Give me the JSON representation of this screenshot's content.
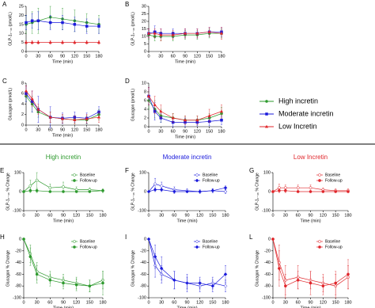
{
  "legend": [
    "High incretin",
    "Moderate incretin",
    "Low Incretin"
  ],
  "chart_data": [
    {
      "type": "line",
      "label": "A",
      "ylabel": "GLP-1₇₋₃₆ (pmol/L)",
      "xlabel": "Time (min)",
      "x": [
        0,
        15,
        30,
        60,
        90,
        120,
        150,
        180
      ],
      "xlim": [
        0,
        180
      ],
      "xticks": [
        0,
        30,
        60,
        90,
        120,
        150,
        180
      ],
      "ylim": [
        0,
        25
      ],
      "yticks": [
        0,
        5,
        10,
        15,
        20,
        25
      ],
      "series": [
        {
          "name": "High incretin",
          "color": "#2e9a2e",
          "marker": "circle",
          "values": [
            15,
            16,
            17,
            19,
            18,
            17,
            16,
            15
          ],
          "errors": [
            5,
            6,
            7,
            6,
            6,
            6,
            5,
            5
          ]
        },
        {
          "name": "Moderate incretin",
          "color": "#1a1adb",
          "marker": "square",
          "values": [
            16,
            17,
            17,
            16,
            16,
            15,
            14,
            14
          ],
          "errors": [
            4,
            4,
            5,
            4,
            4,
            4,
            4,
            4
          ]
        },
        {
          "name": "Low Incretin",
          "color": "#e0262b",
          "marker": "triangle",
          "values": [
            5,
            5,
            5,
            5,
            5,
            5,
            5,
            5
          ],
          "errors": [
            1,
            1,
            1,
            1,
            1,
            1,
            1,
            1
          ]
        }
      ]
    },
    {
      "type": "line",
      "label": "B",
      "ylabel": "GLP-1₇₋₃₆ (pmol/L)",
      "xlabel": "Time (min)",
      "x": [
        0,
        15,
        30,
        60,
        90,
        120,
        150,
        180
      ],
      "xlim": [
        0,
        180
      ],
      "xticks": [
        0,
        30,
        60,
        90,
        120,
        150,
        180
      ],
      "ylim": [
        0,
        30
      ],
      "yticks": [
        0,
        5,
        10,
        15,
        20,
        25,
        30
      ],
      "series": [
        {
          "color": "#2e9a2e",
          "marker": "circle",
          "values": [
            11,
            10,
            10,
            10,
            11,
            11,
            12,
            12
          ],
          "errors": [
            3,
            3,
            3,
            3,
            3,
            3,
            3,
            3
          ]
        },
        {
          "color": "#1a1adb",
          "marker": "square",
          "values": [
            12,
            13,
            12,
            12,
            12,
            12,
            13,
            13
          ],
          "errors": [
            3,
            4,
            3,
            3,
            3,
            3,
            3,
            3
          ]
        },
        {
          "color": "#e0262b",
          "marker": "triangle",
          "values": [
            12,
            12,
            11,
            11,
            12,
            12,
            13,
            12
          ],
          "errors": [
            3,
            3,
            4,
            3,
            3,
            3,
            3,
            4
          ]
        }
      ]
    },
    {
      "type": "line",
      "label": "C",
      "ylabel": "Glucagon (pmol/L)",
      "xlabel": "Time (min)",
      "x": [
        0,
        15,
        30,
        60,
        90,
        120,
        150,
        180
      ],
      "xlim": [
        0,
        180
      ],
      "xticks": [
        0,
        30,
        60,
        90,
        120,
        150,
        180
      ],
      "ylim": [
        0,
        8
      ],
      "yticks": [
        0,
        2,
        4,
        6,
        8
      ],
      "series": [
        {
          "color": "#2e9a2e",
          "marker": "circle",
          "values": [
            5.5,
            4,
            2.5,
            1.5,
            1.2,
            1,
            1,
            2
          ],
          "errors": [
            1,
            1.5,
            1,
            1,
            0.8,
            0.8,
            0.8,
            1
          ]
        },
        {
          "color": "#1a1adb",
          "marker": "square",
          "values": [
            6,
            4.5,
            3,
            1.5,
            1.3,
            1.5,
            1.3,
            2.5
          ],
          "errors": [
            1.5,
            2,
            2.5,
            2,
            1,
            1,
            1,
            1
          ]
        },
        {
          "color": "#e0262b",
          "marker": "triangle",
          "values": [
            6.5,
            5,
            3,
            1.5,
            1.2,
            1,
            1.2,
            1.5
          ],
          "errors": [
            1,
            1.5,
            1,
            1,
            0.8,
            0.8,
            0.8,
            1
          ]
        }
      ]
    },
    {
      "type": "line",
      "label": "D",
      "ylabel": "Glucagon (pmol/L)",
      "xlabel": "Time (min)",
      "x": [
        0,
        15,
        30,
        60,
        90,
        120,
        150,
        180
      ],
      "xlim": [
        0,
        180
      ],
      "xticks": [
        0,
        30,
        60,
        90,
        120,
        150,
        180
      ],
      "ylim": [
        0,
        10
      ],
      "yticks": [
        0,
        2,
        4,
        6,
        8,
        10
      ],
      "series": [
        {
          "color": "#2e9a2e",
          "marker": "circle",
          "values": [
            6,
            4,
            2.5,
            2,
            1.5,
            1.5,
            2,
            3
          ],
          "errors": [
            2,
            2,
            1.5,
            1,
            1,
            1,
            1,
            1.5
          ]
        },
        {
          "color": "#1a1adb",
          "marker": "square",
          "values": [
            7,
            3.5,
            2,
            1,
            1,
            1,
            1.2,
            1.5
          ],
          "errors": [
            2,
            2,
            1,
            1,
            1,
            0.8,
            1,
            1
          ]
        },
        {
          "color": "#e0262b",
          "marker": "triangle",
          "values": [
            7,
            5,
            3.5,
            2,
            1.5,
            1.5,
            2.5,
            3.5
          ],
          "errors": [
            2,
            2,
            1.5,
            1,
            1,
            1,
            1.5,
            1.5
          ]
        }
      ]
    },
    {
      "type": "line",
      "label": "E",
      "title": "High incretin",
      "ylabel": "GLP-1₇₋₃₆ % Change",
      "xlabel": "Time (min)",
      "x": [
        0,
        15,
        30,
        60,
        90,
        120,
        150,
        180
      ],
      "xlim": [
        0,
        180
      ],
      "xticks": [
        0,
        30,
        60,
        90,
        120,
        150,
        180
      ],
      "ylim": [
        -100,
        100
      ],
      "yticks": [
        -100,
        0,
        100
      ],
      "series": [
        {
          "name": "Baseline",
          "color": "#2e9a2e",
          "marker": "open-circle",
          "values": [
            0,
            30,
            60,
            20,
            25,
            10,
            10,
            5
          ],
          "errors": [
            0,
            30,
            40,
            20,
            25,
            15,
            10,
            10
          ]
        },
        {
          "name": "Follow-up",
          "color": "#2e9a2e",
          "marker": "circle",
          "values": [
            0,
            5,
            5,
            0,
            0,
            0,
            0,
            5
          ],
          "errors": [
            0,
            10,
            10,
            5,
            5,
            5,
            5,
            5
          ]
        }
      ]
    },
    {
      "type": "line",
      "label": "F",
      "title": "Moderate incretin",
      "ylabel": "GLP-1₇₋₃₆ % Change",
      "xlabel": "Time (min)",
      "x": [
        0,
        15,
        30,
        60,
        90,
        120,
        150,
        180
      ],
      "xlim": [
        0,
        180
      ],
      "xticks": [
        0,
        30,
        60,
        90,
        120,
        150,
        180
      ],
      "ylim": [
        -100,
        100
      ],
      "yticks": [
        -100,
        0,
        100
      ],
      "series": [
        {
          "name": "Baseline",
          "color": "#1a1adb",
          "marker": "open-diamond",
          "values": [
            0,
            40,
            30,
            10,
            5,
            0,
            5,
            0
          ],
          "errors": [
            0,
            30,
            20,
            15,
            10,
            10,
            10,
            10
          ]
        },
        {
          "name": "Follow-up",
          "color": "#1a1adb",
          "marker": "diamond",
          "values": [
            0,
            10,
            10,
            0,
            0,
            0,
            5,
            20
          ],
          "errors": [
            0,
            10,
            10,
            10,
            5,
            5,
            10,
            10
          ]
        }
      ]
    },
    {
      "type": "line",
      "label": "G",
      "title": "Low Incretin",
      "ylabel": "GLP-1₇₋₃₆ % Change",
      "xlabel": "Time (min)",
      "x": [
        0,
        15,
        30,
        60,
        90,
        120,
        150,
        180
      ],
      "xlim": [
        0,
        180
      ],
      "xticks": [
        0,
        30,
        60,
        90,
        120,
        150,
        180
      ],
      "ylim": [
        -100,
        100
      ],
      "yticks": [
        -100,
        0,
        100
      ],
      "series": [
        {
          "name": "Baseline",
          "color": "#e0262b",
          "marker": "open-circle",
          "values": [
            0,
            20,
            20,
            20,
            20,
            10,
            5,
            5
          ],
          "errors": [
            0,
            20,
            15,
            15,
            15,
            10,
            10,
            10
          ]
        },
        {
          "name": "Follow-up",
          "color": "#e0262b",
          "marker": "circle",
          "values": [
            0,
            5,
            5,
            0,
            0,
            0,
            0,
            0
          ],
          "errors": [
            0,
            10,
            10,
            5,
            5,
            5,
            5,
            5
          ]
        }
      ]
    },
    {
      "type": "line",
      "label": "H",
      "ylabel": "Glucagon % Change",
      "xlabel": "Time (min)",
      "x": [
        0,
        15,
        30,
        60,
        90,
        120,
        150,
        180
      ],
      "xlim": [
        0,
        180
      ],
      "xticks": [
        0,
        30,
        60,
        90,
        120,
        150,
        180
      ],
      "ylim": [
        -100,
        0
      ],
      "yticks": [
        -100,
        -80,
        -60,
        -40,
        -20,
        0
      ],
      "series": [
        {
          "name": "Baseline",
          "color": "#2e9a2e",
          "marker": "open-circle",
          "values": [
            0,
            -25,
            -55,
            -65,
            -70,
            -75,
            -80,
            -70
          ],
          "errors": [
            0,
            15,
            15,
            10,
            10,
            10,
            10,
            15
          ]
        },
        {
          "name": "Follow-up",
          "color": "#2e9a2e",
          "marker": "circle",
          "values": [
            0,
            -30,
            -60,
            -70,
            -75,
            -78,
            -80,
            -75
          ],
          "errors": [
            0,
            15,
            15,
            10,
            10,
            10,
            10,
            20
          ]
        }
      ]
    },
    {
      "type": "line",
      "label": "I",
      "ylabel": "Glucagon % Change",
      "xlabel": "Time (min)",
      "x": [
        0,
        15,
        30,
        60,
        90,
        120,
        150,
        180
      ],
      "xlim": [
        0,
        180
      ],
      "xticks": [
        0,
        30,
        60,
        90,
        120,
        150,
        180
      ],
      "ylim": [
        -100,
        0
      ],
      "yticks": [
        -100,
        -80,
        -60,
        -40,
        -20,
        0
      ],
      "series": [
        {
          "name": "Baseline",
          "color": "#1a1adb",
          "marker": "open-diamond",
          "values": [
            0,
            -45,
            -60,
            -70,
            -75,
            -80,
            -75,
            -80
          ],
          "errors": [
            0,
            20,
            15,
            15,
            10,
            10,
            10,
            10
          ]
        },
        {
          "name": "Follow-up",
          "color": "#1a1adb",
          "marker": "diamond",
          "values": [
            0,
            -30,
            -50,
            -70,
            -75,
            -75,
            -80,
            -60
          ],
          "errors": [
            0,
            20,
            20,
            15,
            15,
            10,
            10,
            15
          ]
        }
      ]
    },
    {
      "type": "line",
      "label": "L",
      "ylabel": "Glucagon % Change",
      "xlabel": "Time (min)",
      "x": [
        0,
        15,
        30,
        60,
        90,
        120,
        150,
        180
      ],
      "xlim": [
        0,
        180
      ],
      "xticks": [
        0,
        30,
        60,
        90,
        120,
        150,
        180
      ],
      "ylim": [
        -100,
        0
      ],
      "yticks": [
        -100,
        -80,
        -60,
        -40,
        -20,
        0
      ],
      "series": [
        {
          "name": "Baseline",
          "color": "#e0262b",
          "marker": "open-circle",
          "values": [
            0,
            -40,
            -70,
            -65,
            -70,
            -75,
            -80,
            -65
          ],
          "errors": [
            0,
            30,
            25,
            20,
            15,
            15,
            20,
            20
          ]
        },
        {
          "name": "Follow-up",
          "color": "#e0262b",
          "marker": "circle",
          "values": [
            0,
            -50,
            -80,
            -70,
            -75,
            -80,
            -75,
            -60
          ],
          "errors": [
            0,
            30,
            20,
            15,
            20,
            15,
            20,
            25
          ]
        }
      ]
    }
  ]
}
